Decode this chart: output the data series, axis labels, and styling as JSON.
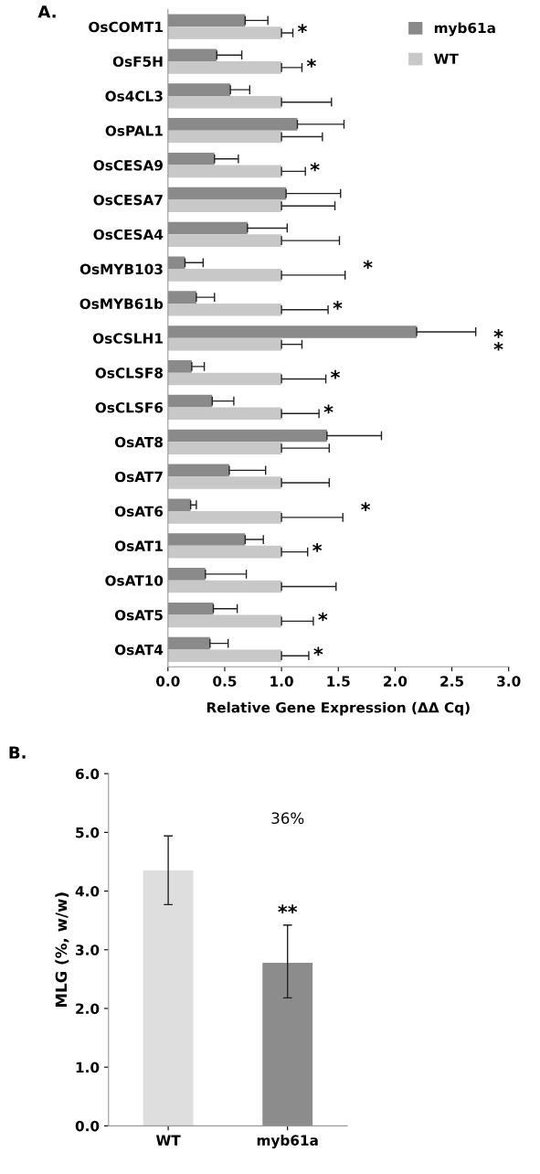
{
  "chart_data": [
    {
      "type": "bar",
      "orientation": "horizontal",
      "title": "A.",
      "xlabel": "Relative Gene Expression (ΔΔ Cq)",
      "categories": [
        "OsCOMT1",
        "OsF5H",
        "Os4CL3",
        "OsPAL1",
        "OsCESA9",
        "OsCESA7",
        "OsCESA4",
        "OsMYB103",
        "OsMYB61b",
        "OsCSLH1",
        "OsCLSF8",
        "OsCLSF6",
        "OsAT8",
        "OsAT7",
        "OsAT6",
        "OsAT1",
        "OsAT10",
        "OsAT5",
        "OsAT4"
      ],
      "series": [
        {
          "name": "myb61a",
          "color": "#8a8a8a",
          "values": [
            0.68,
            0.43,
            0.55,
            1.14,
            0.41,
            1.04,
            0.7,
            0.15,
            0.25,
            2.19,
            0.21,
            0.39,
            1.4,
            0.54,
            0.2,
            0.68,
            0.33,
            0.4,
            0.37
          ],
          "errors": [
            [
              0.68,
              0.88
            ],
            [
              0.43,
              0.65
            ],
            [
              0.55,
              0.72
            ],
            [
              1.14,
              1.55
            ],
            [
              0.41,
              0.62
            ],
            [
              1.04,
              1.52
            ],
            [
              0.7,
              1.05
            ],
            [
              0.15,
              0.31
            ],
            [
              0.25,
              0.41
            ],
            [
              2.19,
              2.71
            ],
            [
              0.21,
              0.32
            ],
            [
              0.39,
              0.58
            ],
            [
              1.4,
              1.88
            ],
            [
              0.54,
              0.86
            ],
            [
              0.2,
              0.25
            ],
            [
              0.68,
              0.84
            ],
            [
              0.33,
              0.69
            ],
            [
              0.4,
              0.61
            ],
            [
              0.37,
              0.53
            ]
          ],
          "value_labels": [
            null,
            null,
            null,
            null,
            null,
            null,
            null,
            null,
            null,
            null,
            null,
            null,
            null,
            null,
            null,
            null,
            null,
            null,
            null
          ]
        },
        {
          "name": "WT",
          "color": "#c8c8c8",
          "values": [
            1.0,
            1.0,
            1.0,
            1.0,
            1.0,
            1.0,
            1.0,
            1.0,
            1.0,
            1.0,
            1.0,
            1.0,
            1.0,
            1.0,
            1.0,
            1.0,
            1.0,
            1.0,
            1.0
          ],
          "errors": [
            [
              1.0,
              1.1
            ],
            [
              1.0,
              1.18
            ],
            [
              1.0,
              1.44
            ],
            [
              1.0,
              1.36
            ],
            [
              1.0,
              1.21
            ],
            [
              1.0,
              1.47
            ],
            [
              1.0,
              1.51
            ],
            [
              1.0,
              1.56
            ],
            [
              1.0,
              1.41
            ],
            [
              1.0,
              1.18
            ],
            [
              1.0,
              1.39
            ],
            [
              1.0,
              1.33
            ],
            [
              1.0,
              1.42
            ],
            [
              1.0,
              1.42
            ],
            [
              1.0,
              1.54
            ],
            [
              1.0,
              1.23
            ],
            [
              1.0,
              1.48
            ],
            [
              1.0,
              1.28
            ],
            [
              1.0,
              1.24
            ]
          ],
          "value_labels": [
            "*",
            "*",
            null,
            null,
            "*",
            null,
            null,
            null,
            "*",
            null,
            "*",
            "*",
            null,
            null,
            null,
            "*",
            null,
            "*",
            "*"
          ]
        }
      ],
      "annotations": [
        {
          "text": "*",
          "x": 1.56,
          "y": "OsMYB103"
        },
        {
          "text": "*\n*",
          "x": 2.71,
          "y": "OsCSLH1"
        },
        {
          "text": "*",
          "x": 1.54,
          "y": "OsAT6"
        }
      ],
      "xlim": [
        0,
        3.0
      ],
      "xticks": [
        {
          "value": 0,
          "label": "0.0"
        },
        {
          "value": 0.5,
          "label": "0.5"
        },
        {
          "value": 1,
          "label": "1.0"
        },
        {
          "value": 1.5,
          "label": "1.5"
        },
        {
          "value": 2,
          "label": "2.0"
        },
        {
          "value": 2.5,
          "label": "2.5"
        },
        {
          "value": 3,
          "label": "3.0"
        }
      ],
      "legend": "top right",
      "grid": false
    },
    {
      "type": "bar",
      "title": "B.",
      "ylabel": "MLG (%, w/w)",
      "categories": [
        "WT",
        "myb61a"
      ],
      "values": [
        4.35,
        2.78
      ],
      "colors": [
        "#dedede",
        "#8c8c8c"
      ],
      "errors": [
        [
          3.77,
          4.94
        ],
        [
          2.18,
          3.42
        ]
      ],
      "value_labels": [
        null,
        "**"
      ],
      "ylim": [
        0,
        6.0
      ],
      "yticks": [
        {
          "value": 0,
          "label": "0.0"
        },
        {
          "value": 1,
          "label": "1.0"
        },
        {
          "value": 2,
          "label": "2.0"
        },
        {
          "value": 3,
          "label": "3.0"
        },
        {
          "value": 4,
          "label": "4.0"
        },
        {
          "value": 5,
          "label": "5.0"
        },
        {
          "value": 6,
          "label": "6.0"
        }
      ],
      "grid": false,
      "annotations": [
        "36%"
      ]
    }
  ]
}
